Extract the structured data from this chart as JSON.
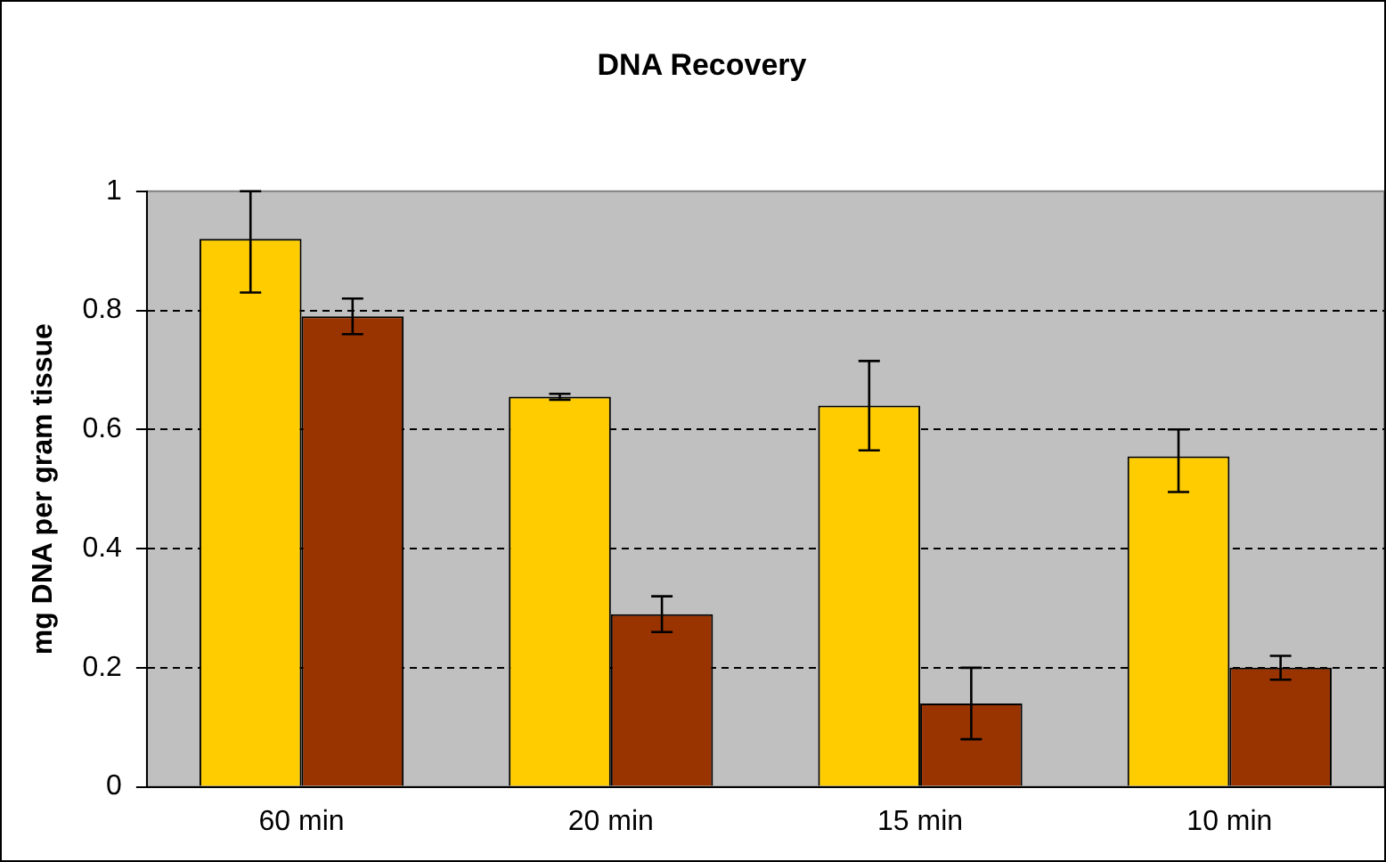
{
  "chart_data": {
    "type": "bar",
    "title": "DNA Recovery",
    "ylabel": "mg DNA per gram tissue",
    "categories": [
      "60 min",
      "20 min",
      "15 min",
      "10 min"
    ],
    "series": [
      {
        "color": "#ffcc00",
        "values": [
          0.92,
          0.655,
          0.64,
          0.555
        ],
        "errors": [
          [
            0.83,
            1.0
          ],
          [
            0.65,
            0.66
          ],
          [
            0.565,
            0.715
          ],
          [
            0.495,
            0.6
          ]
        ]
      },
      {
        "color": "#993300",
        "values": [
          0.79,
          0.29,
          0.14,
          0.2
        ],
        "errors": [
          [
            0.76,
            0.82
          ],
          [
            0.26,
            0.32
          ],
          [
            0.08,
            0.2
          ],
          [
            0.18,
            0.22
          ]
        ]
      }
    ],
    "ylim": [
      0,
      1
    ],
    "yticks": [
      0,
      0.2,
      0.4,
      0.6,
      0.8,
      1
    ],
    "grid": "y",
    "legend": false
  }
}
